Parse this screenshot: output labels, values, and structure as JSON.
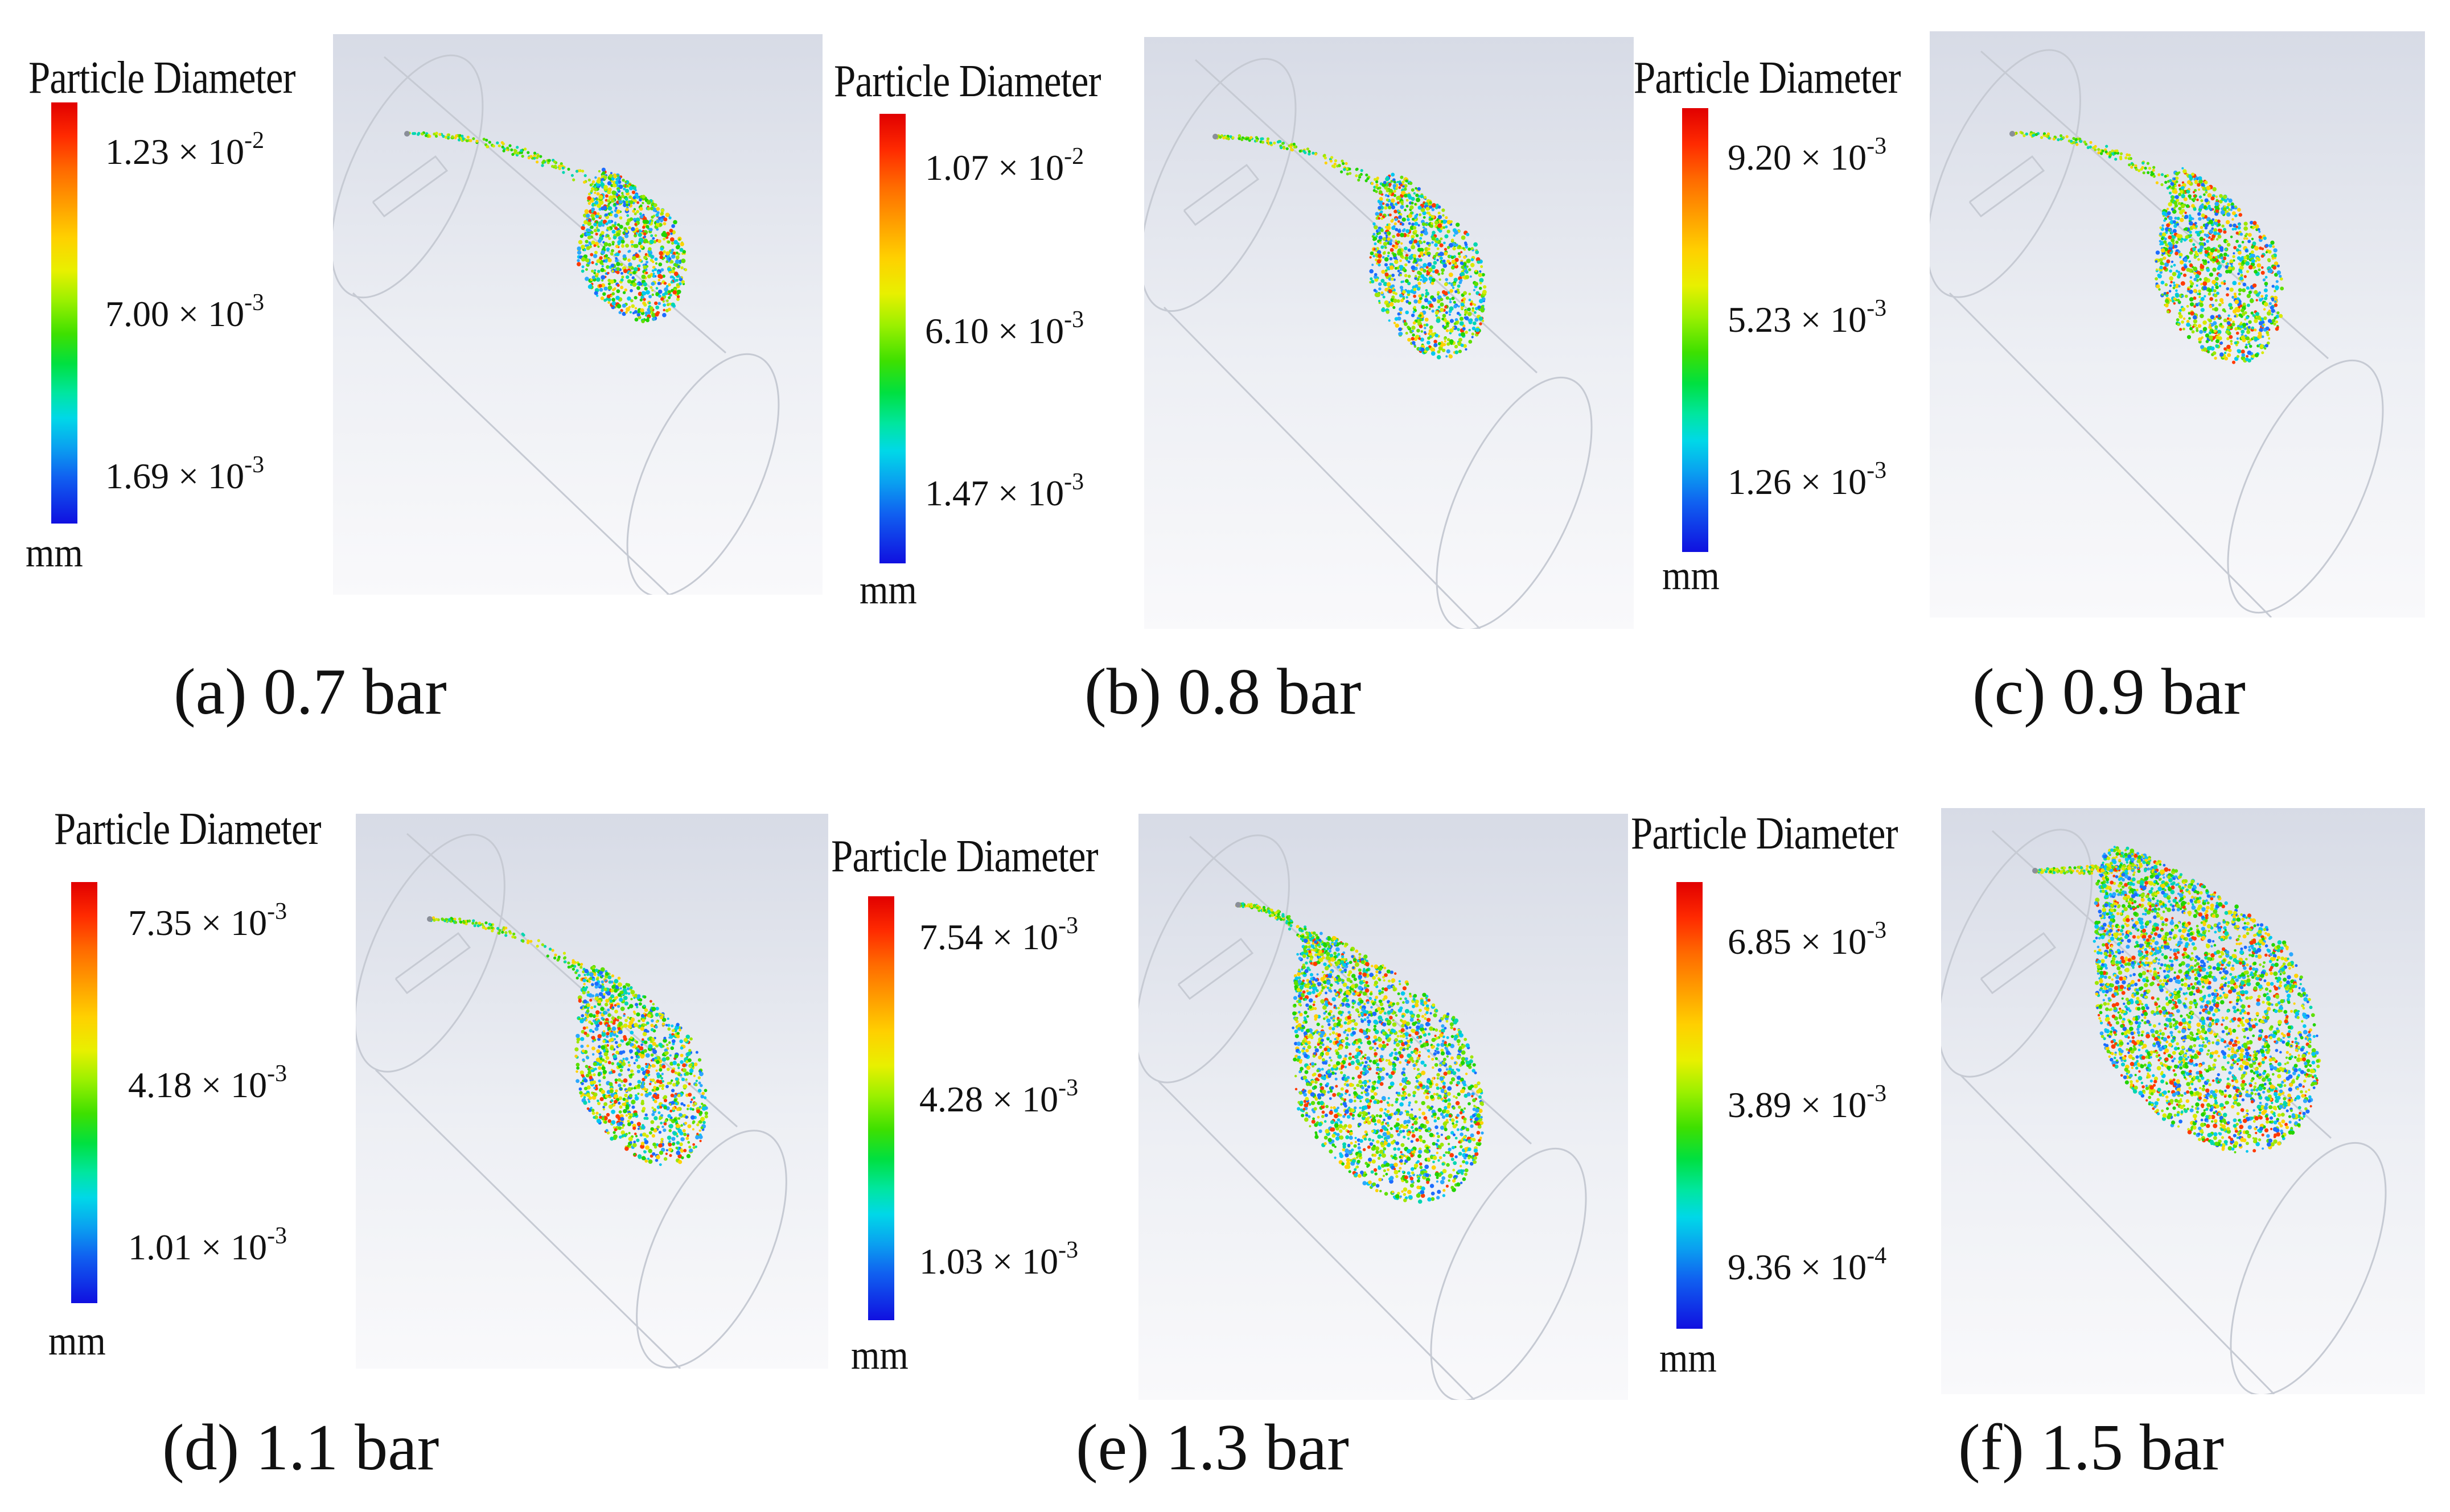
{
  "legend_title": "Particle Diameter",
  "unit": "mm",
  "colorbar_colors": [
    "#e10000",
    "#ff9d00",
    "#ffd000",
    "#3ee000",
    "#00d8e8",
    "#1010e0"
  ],
  "particle_colors": [
    "#22d400",
    "#5ee000",
    "#9ee600",
    "#d8ea00",
    "#ffd200",
    "#00d6b0",
    "#00c8f0",
    "#1c6cff",
    "#ff3a00",
    "#2aa8ff"
  ],
  "panels": [
    {
      "caption": "(a) 0.7 bar",
      "ticks": [
        {
          "m": "1.23",
          "e": "-2"
        },
        {
          "m": "7.00",
          "e": "-3"
        },
        {
          "m": "1.69",
          "e": "-3"
        }
      ]
    },
    {
      "caption": "(b) 0.8 bar",
      "ticks": [
        {
          "m": "1.07",
          "e": "-2"
        },
        {
          "m": "6.10",
          "e": "-3"
        },
        {
          "m": "1.47",
          "e": "-3"
        }
      ]
    },
    {
      "caption": "(c) 0.9 bar",
      "ticks": [
        {
          "m": "9.20",
          "e": "-3"
        },
        {
          "m": "5.23",
          "e": "-3"
        },
        {
          "m": "1.26",
          "e": "-3"
        }
      ]
    },
    {
      "caption": "(d) 1.1 bar",
      "ticks": [
        {
          "m": "7.35",
          "e": "-3"
        },
        {
          "m": "4.18",
          "e": "-3"
        },
        {
          "m": "1.01",
          "e": "-3"
        }
      ]
    },
    {
      "caption": "(e) 1.3 bar",
      "ticks": [
        {
          "m": "7.54",
          "e": "-3"
        },
        {
          "m": "4.28",
          "e": "-3"
        },
        {
          "m": "1.03",
          "e": "-3"
        }
      ]
    },
    {
      "caption": "(f) 1.5 bar",
      "ticks": [
        {
          "m": "6.85",
          "e": "-3"
        },
        {
          "m": "3.89",
          "e": "-3"
        },
        {
          "m": "9.36",
          "e": "-4"
        }
      ]
    }
  ]
}
